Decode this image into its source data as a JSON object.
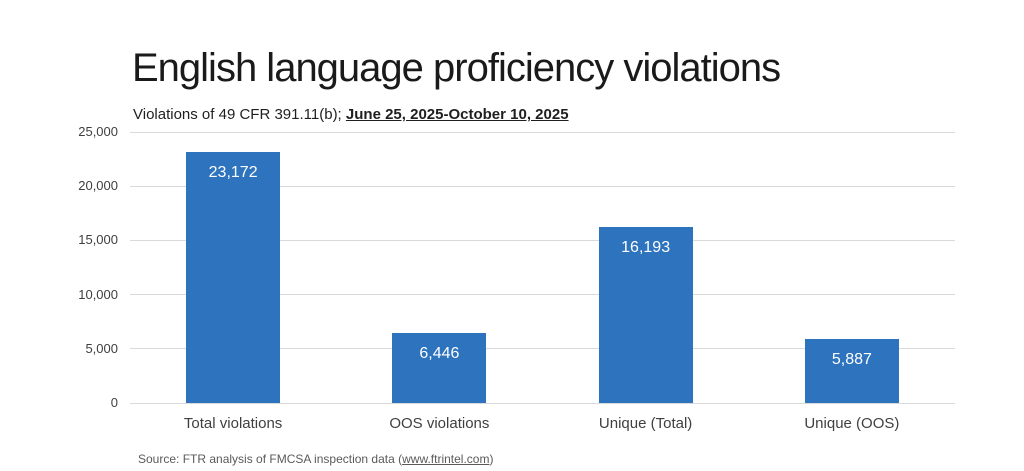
{
  "chart_data": {
    "type": "bar",
    "title": "English language proficiency violations",
    "subtitle_prefix": "Violations of 49 CFR 391.11(b); ",
    "subtitle_period": "June 25, 2025-October 10, 2025",
    "categories": [
      "Total violations",
      "OOS violations",
      "Unique (Total)",
      "Unique (OOS)"
    ],
    "values": [
      23172,
      6446,
      16193,
      5887
    ],
    "value_labels": [
      "23,172",
      "6,446",
      "16,193",
      "5,887"
    ],
    "y_ticks": [
      0,
      5000,
      10000,
      15000,
      20000,
      25000
    ],
    "y_tick_labels": [
      "0",
      "5,000",
      "10,000",
      "15,000",
      "20,000",
      "25,000"
    ],
    "ylim": [
      0,
      25000
    ],
    "grid": true,
    "legend": "none",
    "bar_color": "#2e73be",
    "value_label_color": "#ffffff"
  },
  "footer": {
    "source_prefix": "Source: FTR analysis of FMCSA inspection data (",
    "source_link": "www.ftrintel.com",
    "source_suffix": ")"
  },
  "colors": {
    "background": "#ffffff",
    "gridline": "#d9d9d9",
    "axis_text": "#3f3f3f",
    "title_text": "#1a1a1a",
    "source_text": "#5a5a5a"
  }
}
